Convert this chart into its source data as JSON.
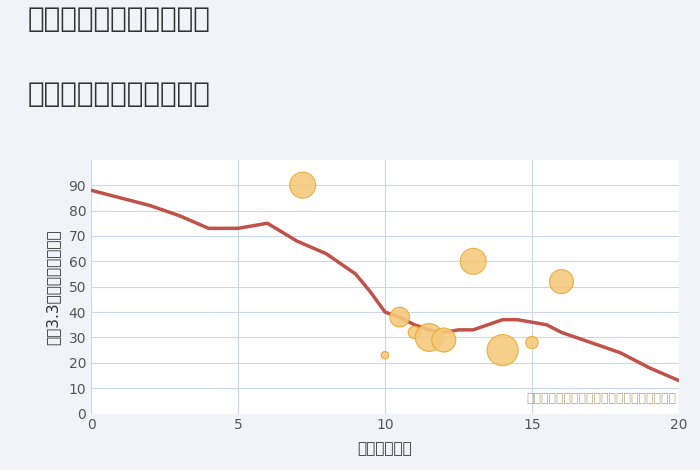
{
  "title_line1": "三重県津市久居烏木町の",
  "title_line2": "駅距離別中古戸建て価格",
  "xlabel": "駅距離（分）",
  "ylabel": "坪（3.3㎡）単価（万円）",
  "annotation": "円の大きさは、取引のあった物件面積を示す",
  "background_color": "#f0f4f8",
  "plot_bg_color": "#ffffff",
  "line_color": "#c0524a",
  "line_x": [
    0,
    1,
    2,
    3,
    4,
    5,
    5.5,
    6,
    7,
    8,
    9,
    9.5,
    10,
    10.5,
    11,
    11.5,
    12,
    12.5,
    13,
    13.5,
    14,
    14.5,
    15,
    15.5,
    16,
    17,
    18,
    19,
    20
  ],
  "line_y": [
    88,
    85,
    82,
    78,
    73,
    73,
    74,
    75,
    68,
    63,
    55,
    48,
    40,
    38,
    35,
    33,
    32,
    33,
    33,
    35,
    37,
    37,
    36,
    35,
    32,
    28,
    24,
    18,
    13
  ],
  "scatter_x": [
    7.2,
    10.0,
    10.5,
    11.0,
    11.5,
    12.0,
    13.0,
    14.0,
    15.0,
    16.0
  ],
  "scatter_y": [
    90,
    23,
    38,
    32,
    30,
    29,
    60,
    25,
    28,
    52
  ],
  "scatter_sizes": [
    350,
    30,
    200,
    80,
    400,
    300,
    350,
    500,
    80,
    300
  ],
  "scatter_color": "#f5c97a",
  "scatter_edge_color": "#e8a830",
  "xlim": [
    0,
    20
  ],
  "ylim": [
    0,
    100
  ],
  "xticks": [
    0,
    5,
    10,
    15,
    20
  ],
  "yticks": [
    0,
    10,
    20,
    30,
    40,
    50,
    60,
    70,
    80,
    90
  ],
  "grid_color": "#c8d8e8",
  "title_color": "#333333",
  "title_fontsize": 20,
  "label_fontsize": 11,
  "tick_fontsize": 10,
  "annotation_color": "#b8a878",
  "annotation_fontsize": 9
}
